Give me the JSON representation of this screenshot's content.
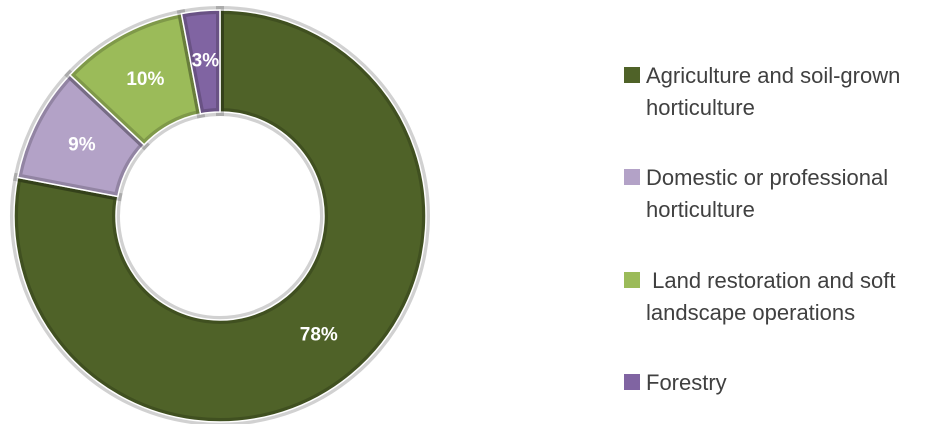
{
  "chart_data": {
    "type": "donut",
    "categories": [
      "Agriculture and soil-grown horticulture",
      "Domestic or professional horticulture",
      " Land restoration and soft landscape operations",
      "Forestry"
    ],
    "values": [
      78,
      9,
      10,
      3
    ],
    "value_labels": [
      "78%",
      "9%",
      "10%",
      "3%"
    ],
    "colors": [
      "#4f6228",
      "#b3a2c7",
      "#9bbb59",
      "#8064a2"
    ],
    "legend": "right"
  }
}
